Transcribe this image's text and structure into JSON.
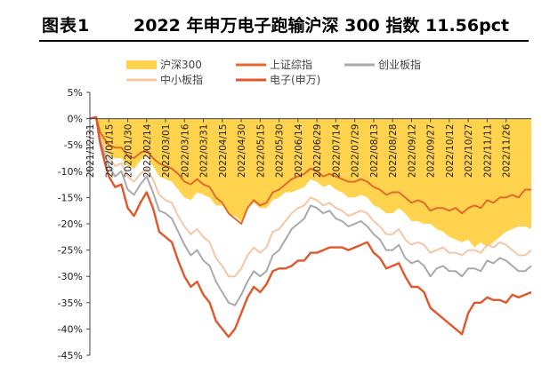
{
  "header": {
    "figure_no": "图表1",
    "title": "2022 年申万电子跑输沪深 300 指数 11.56pct"
  },
  "colors": {
    "hs300": "#FFD34D",
    "shanghai": "#E36A2C",
    "chinext": "#AAAAAA",
    "sme": "#F5C7A6",
    "electronics": "#E0572A"
  },
  "chart_data": {
    "type": "line",
    "title": "2022 年申万电子跑输沪深 300 指数 11.56pct",
    "xlabel": "",
    "ylabel": "",
    "ylim": [
      -45,
      5
    ],
    "yticks": [
      5,
      0,
      -5,
      -10,
      -15,
      -20,
      -25,
      -30,
      -35,
      -40,
      -45
    ],
    "ytick_labels": [
      "5%",
      "0%",
      "-5%",
      "-10%",
      "-15%",
      "-20%",
      "-25%",
      "-30%",
      "-35%",
      "-40%",
      "-45%"
    ],
    "xtick_labels": [
      "2021/12/31",
      "2022/01/15",
      "2022/01/30",
      "2022/02/14",
      "2022/03/01",
      "2022/03/16",
      "2022/03/31",
      "2022/04/15",
      "2022/04/30",
      "2022/05/15",
      "2022/05/30",
      "2022/06/14",
      "2022/06/29",
      "2022/07/14",
      "2022/07/29",
      "2022/08/13",
      "2022/08/28",
      "2022/09/12",
      "2022/09/27",
      "2022/10/12",
      "2022/10/27",
      "2022/11/11",
      "2022/11/26"
    ],
    "x_range": [
      0,
      350
    ],
    "legend_position": "top",
    "grid": false,
    "series": [
      {
        "name": "沪深300",
        "key": "hs300",
        "style": "area",
        "x": [
          0,
          5,
          8,
          12,
          15,
          20,
          25,
          30,
          35,
          40,
          45,
          50,
          55,
          60,
          65,
          70,
          75,
          80,
          85,
          90,
          95,
          100,
          105,
          110,
          115,
          120,
          125,
          130,
          135,
          140,
          145,
          150,
          155,
          160,
          165,
          170,
          175,
          180,
          185,
          190,
          195,
          200,
          205,
          210,
          215,
          220,
          225,
          230,
          235,
          240,
          245,
          250,
          255,
          260,
          265,
          270,
          275,
          280,
          285,
          290,
          295,
          300,
          305,
          310,
          315,
          320,
          325,
          330,
          335,
          340,
          345,
          350
        ],
        "y": [
          0,
          0.3,
          -3.5,
          -5.5,
          -7,
          -7.5,
          -7.5,
          -9,
          -9.5,
          -8,
          -7,
          -9,
          -11,
          -11.5,
          -12,
          -13.5,
          -15,
          -15.5,
          -14,
          -14.5,
          -15,
          -16.5,
          -16.5,
          -18,
          -18.5,
          -19.5,
          -17,
          -16,
          -17,
          -17,
          -15.5,
          -15,
          -14,
          -14,
          -13.5,
          -13,
          -11.5,
          -12,
          -13,
          -12.5,
          -13.5,
          -14,
          -15,
          -15,
          -14.5,
          -15,
          -16.5,
          -17,
          -18,
          -18,
          -17,
          -18,
          -19.5,
          -19.5,
          -20,
          -20,
          -21,
          -21.5,
          -22.5,
          -23,
          -23.5,
          -23,
          -24.5,
          -23.5,
          -24.5,
          -23.5,
          -22.5,
          -21.5,
          -21,
          -20.5,
          -20.5,
          -21
        ]
      },
      {
        "name": "上证综指",
        "key": "shanghai",
        "style": "line",
        "x": [
          0,
          5,
          8,
          12,
          15,
          20,
          25,
          30,
          35,
          40,
          45,
          50,
          55,
          60,
          65,
          70,
          75,
          80,
          85,
          90,
          95,
          100,
          105,
          110,
          115,
          120,
          125,
          130,
          135,
          140,
          145,
          150,
          155,
          160,
          165,
          170,
          175,
          180,
          185,
          190,
          195,
          200,
          205,
          210,
          215,
          220,
          225,
          230,
          235,
          240,
          245,
          250,
          255,
          260,
          265,
          270,
          275,
          280,
          285,
          290,
          295,
          300,
          305,
          310,
          315,
          320,
          325,
          330,
          335,
          340,
          345,
          350
        ],
        "y": [
          0,
          0.3,
          -2.5,
          -4,
          -5,
          -5.5,
          -5.5,
          -7,
          -7.5,
          -6.5,
          -6,
          -7.5,
          -8.5,
          -9,
          -9.5,
          -10.5,
          -12,
          -12.5,
          -11.5,
          -12.5,
          -13,
          -15,
          -16,
          -18,
          -19,
          -20,
          -17,
          -15.5,
          -16.5,
          -16,
          -14,
          -13.5,
          -12.5,
          -11.5,
          -11,
          -10.5,
          -9.5,
          -10,
          -11,
          -10.5,
          -11,
          -11.5,
          -12,
          -12,
          -11.5,
          -12,
          -13,
          -13.5,
          -14.5,
          -14,
          -14,
          -15,
          -16,
          -15.5,
          -16,
          -17.5,
          -17,
          -17,
          -17.5,
          -17,
          -18,
          -17,
          -16.5,
          -17,
          -15.5,
          -16,
          -15,
          -15,
          -14.5,
          -15,
          -13.5,
          -13.5
        ]
      },
      {
        "name": "创业板指",
        "key": "chinext",
        "style": "line",
        "x": [
          0,
          5,
          8,
          12,
          15,
          20,
          25,
          30,
          35,
          40,
          45,
          50,
          55,
          60,
          65,
          70,
          75,
          80,
          85,
          90,
          95,
          100,
          105,
          110,
          115,
          120,
          125,
          130,
          135,
          140,
          145,
          150,
          155,
          160,
          165,
          170,
          175,
          180,
          185,
          190,
          195,
          200,
          205,
          210,
          215,
          220,
          225,
          230,
          235,
          240,
          245,
          250,
          255,
          260,
          265,
          270,
          275,
          280,
          285,
          290,
          295,
          300,
          305,
          310,
          315,
          320,
          325,
          330,
          335,
          340,
          345,
          350
        ],
        "y": [
          0,
          0.3,
          -4,
          -7,
          -9,
          -11,
          -10,
          -13.5,
          -14.5,
          -12.5,
          -11,
          -14,
          -17.5,
          -18,
          -19,
          -21.5,
          -24,
          -26,
          -25,
          -27,
          -28,
          -31,
          -33,
          -35,
          -35.5,
          -33.5,
          -31,
          -29,
          -30,
          -29,
          -26,
          -25,
          -23,
          -21,
          -20,
          -19,
          -16.5,
          -17,
          -18,
          -17.5,
          -19,
          -19.5,
          -20.5,
          -20,
          -19.5,
          -20.5,
          -22,
          -23,
          -25,
          -25,
          -24,
          -26.5,
          -27.5,
          -27,
          -28,
          -30,
          -28.5,
          -28,
          -29,
          -29,
          -30,
          -28.5,
          -28.5,
          -29,
          -27,
          -27.5,
          -26.5,
          -27,
          -28,
          -29,
          -29,
          -28
        ]
      },
      {
        "name": "中小板指",
        "key": "sme",
        "style": "line",
        "x": [
          0,
          5,
          8,
          12,
          15,
          20,
          25,
          30,
          35,
          40,
          45,
          50,
          55,
          60,
          65,
          70,
          75,
          80,
          85,
          90,
          95,
          100,
          105,
          110,
          115,
          120,
          125,
          130,
          135,
          140,
          145,
          150,
          155,
          160,
          165,
          170,
          175,
          180,
          185,
          190,
          195,
          200,
          205,
          210,
          215,
          220,
          225,
          230,
          235,
          240,
          245,
          250,
          255,
          260,
          265,
          270,
          275,
          280,
          285,
          290,
          295,
          300,
          305,
          310,
          315,
          320,
          325,
          330,
          335,
          340,
          345,
          350
        ],
        "y": [
          0,
          0.3,
          -3.5,
          -6,
          -7.5,
          -9,
          -8.5,
          -11,
          -12,
          -10.5,
          -9.5,
          -11.5,
          -14.5,
          -15.5,
          -16,
          -18.5,
          -20.5,
          -22,
          -21,
          -22.5,
          -23.5,
          -26.5,
          -28,
          -30,
          -30,
          -28.5,
          -26,
          -24.5,
          -25.5,
          -24.5,
          -21.5,
          -21,
          -19.5,
          -18,
          -17,
          -16.5,
          -15,
          -15.5,
          -16.5,
          -16,
          -17,
          -17.5,
          -18.5,
          -18,
          -17.5,
          -18,
          -19.5,
          -20.5,
          -22,
          -22,
          -21,
          -23,
          -24,
          -23.5,
          -24,
          -25.5,
          -25,
          -24.5,
          -25.5,
          -25.5,
          -26,
          -25,
          -25,
          -25.5,
          -24,
          -24.5,
          -23.5,
          -24,
          -25,
          -26,
          -26,
          -25
        ]
      },
      {
        "name": "电子(申万)",
        "key": "electronics",
        "style": "line",
        "x": [
          0,
          5,
          8,
          12,
          15,
          20,
          25,
          30,
          35,
          40,
          45,
          50,
          55,
          60,
          65,
          70,
          75,
          80,
          85,
          90,
          95,
          100,
          105,
          110,
          115,
          120,
          125,
          130,
          135,
          140,
          145,
          150,
          155,
          160,
          165,
          170,
          175,
          180,
          185,
          190,
          195,
          200,
          205,
          210,
          215,
          220,
          225,
          230,
          235,
          240,
          245,
          250,
          255,
          260,
          265,
          270,
          275,
          280,
          285,
          290,
          295,
          300,
          305,
          310,
          315,
          320,
          325,
          330,
          335,
          340,
          345,
          350
        ],
        "y": [
          0,
          0.3,
          -4.5,
          -8.5,
          -11,
          -13,
          -12.5,
          -17,
          -18.5,
          -16,
          -14,
          -17,
          -21.5,
          -22.5,
          -23.5,
          -27,
          -30,
          -32,
          -31,
          -33.5,
          -35,
          -38.5,
          -40,
          -41.5,
          -40,
          -37,
          -34,
          -32,
          -33,
          -31.5,
          -29,
          -28.5,
          -28.5,
          -28,
          -27,
          -27,
          -25.5,
          -25.5,
          -25,
          -24.5,
          -24.5,
          -24.5,
          -25,
          -24.5,
          -24,
          -23.5,
          -25.5,
          -26.5,
          -28.5,
          -28,
          -27.5,
          -30,
          -32,
          -32,
          -33,
          -36,
          -37,
          -38,
          -39,
          -40,
          -41,
          -37,
          -35,
          -35,
          -34,
          -34.5,
          -34.5,
          -35,
          -33.5,
          -34,
          -33.5,
          -33
        ]
      }
    ]
  }
}
